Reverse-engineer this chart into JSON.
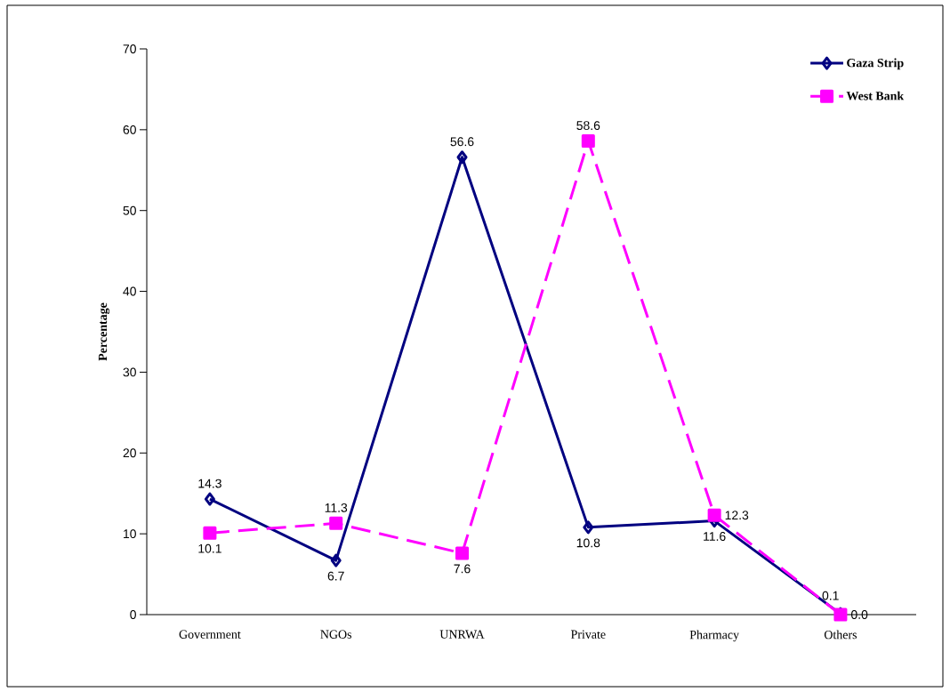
{
  "chart_data": {
    "type": "line",
    "ylabel": "Percentage",
    "categories": [
      "Government",
      "NGOs",
      "UNRWA",
      "Private",
      "Pharmacy",
      "Others"
    ],
    "series": [
      {
        "name": "Gaza Strip",
        "color": "#000080",
        "marker": "diamond",
        "line_style": "solid",
        "values": [
          14.3,
          6.7,
          56.6,
          10.8,
          11.6,
          0.1
        ],
        "value_labels": [
          "14.3",
          "6.7",
          "56.6",
          "10.8",
          "11.6",
          "0.1"
        ]
      },
      {
        "name": "West Bank",
        "color": "#ff00ff",
        "marker": "square",
        "line_style": "dashed",
        "values": [
          10.1,
          11.3,
          7.6,
          58.6,
          12.3,
          0.0
        ],
        "value_labels": [
          "10.1",
          "11.3",
          "7.6",
          "58.6",
          "12.3",
          "0.0"
        ]
      }
    ],
    "ylim": [
      0,
      70
    ],
    "yticks": [
      0,
      10,
      20,
      30,
      40,
      50,
      60,
      70
    ],
    "legend": "top right",
    "grid": false
  }
}
